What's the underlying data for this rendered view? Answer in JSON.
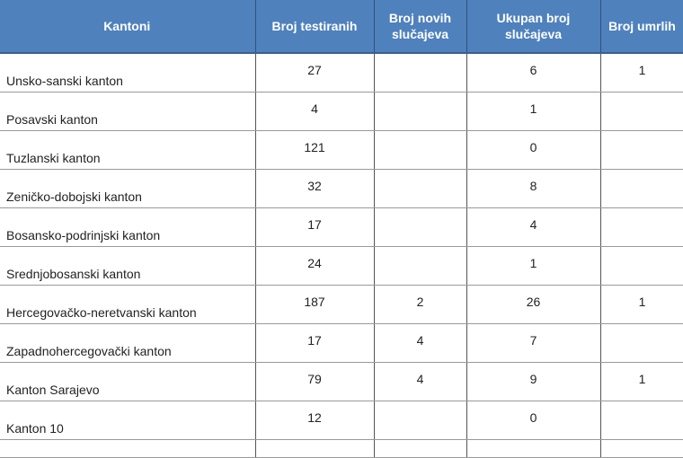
{
  "table": {
    "headers": [
      "Kantoni",
      "Broj testiranih",
      "Broj novih slučajeva",
      "Ukupan broj slučajeva",
      "Broj umrlih"
    ],
    "rows": [
      {
        "name": "Unsko-sanski kanton",
        "tested": "27",
        "new": "",
        "total": "6",
        "deaths": "1"
      },
      {
        "name": "Posavski kanton",
        "tested": "4",
        "new": "",
        "total": "1",
        "deaths": ""
      },
      {
        "name": "Tuzlanski kanton",
        "tested": "121",
        "new": "",
        "total": "0",
        "deaths": ""
      },
      {
        "name": "Zeničko-dobojski kanton",
        "tested": "32",
        "new": "",
        "total": "8",
        "deaths": ""
      },
      {
        "name": "Bosansko-podrinjski kanton",
        "tested": "17",
        "new": "",
        "total": "4",
        "deaths": ""
      },
      {
        "name": "Srednjobosanski kanton",
        "tested": "24",
        "new": "",
        "total": "1",
        "deaths": ""
      },
      {
        "name": "Hercegovačko-neretvanski kanton",
        "tested": "187",
        "new": "2",
        "total": "26",
        "deaths": "1"
      },
      {
        "name": "Zapadnohercegovački kanton",
        "tested": "17",
        "new": "4",
        "total": "7",
        "deaths": ""
      },
      {
        "name": "Kanton Sarajevo",
        "tested": "79",
        "new": "4",
        "total": "9",
        "deaths": "1"
      },
      {
        "name": "Kanton 10",
        "tested": "12",
        "new": "",
        "total": "0",
        "deaths": ""
      }
    ]
  },
  "colors": {
    "header_bg": "#4f81bd",
    "header_text": "#ffffff"
  }
}
